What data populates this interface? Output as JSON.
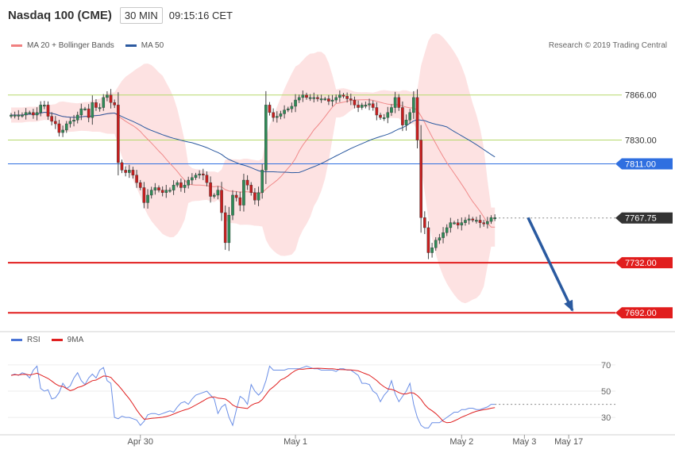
{
  "header": {
    "title": "Nasdaq 100 (CME)",
    "interval": "30 MIN",
    "time": "09:15:16 CET"
  },
  "legend_main": [
    {
      "label": "MA 20 + Bollinger Bands",
      "color": "#f08080"
    },
    {
      "label": "MA 50",
      "color": "#2c5aa0"
    }
  ],
  "legend_rsi": [
    {
      "label": "RSI",
      "color": "#4a74d6"
    },
    {
      "label": "9MA",
      "color": "#e02020"
    }
  ],
  "copyright": "Research © 2019 Trading Central",
  "colors": {
    "up": "#2e8b57",
    "down": "#c81e1e",
    "band_fill": "#fddddd",
    "ma20": "#f08a8a",
    "ma50": "#2c5aa0",
    "resistance": "#b5d96a",
    "pivot": "#2f6fe0",
    "support": "#e11d1d",
    "arrow": "#2a5aa0",
    "rsi": "#6a8ee6",
    "rsi_ma": "#e02020"
  },
  "chart_data": [
    {
      "type": "candlestick",
      "y_range": [
        7682,
        7895
      ],
      "x_labels": [
        {
          "label": "Apr 30",
          "index": 35
        },
        {
          "label": "May 1",
          "index": 77
        },
        {
          "label": "May 2",
          "index": 122
        },
        {
          "label": "May 3",
          "index": 139
        },
        {
          "label": "May 17",
          "index": 151
        }
      ],
      "level_lines": [
        {
          "label": "7866.00",
          "value": 7866,
          "kind": "resistance"
        },
        {
          "label": "7830.00",
          "value": 7830,
          "kind": "resistance"
        },
        {
          "label": "7811.00",
          "value": 7811,
          "kind": "pivot"
        },
        {
          "label": "7767.75",
          "value": 7767.75,
          "kind": "current"
        },
        {
          "label": "7732.00",
          "value": 7732,
          "kind": "support"
        },
        {
          "label": "7692.00",
          "value": 7692,
          "kind": "support"
        }
      ],
      "forecast_arrow": {
        "from": [
          140,
          7768
        ],
        "to": [
          152,
          7694
        ]
      },
      "closes": [
        7850,
        7850,
        7850,
        7850,
        7852,
        7852,
        7850,
        7852,
        7858,
        7858,
        7849,
        7845,
        7843,
        7836,
        7838,
        7843,
        7845,
        7846,
        7850,
        7855,
        7855,
        7848,
        7860,
        7856,
        7856,
        7864,
        7866,
        7860,
        7858,
        7812,
        7806,
        7804,
        7806,
        7802,
        7796,
        7792,
        7780,
        7786,
        7790,
        7792,
        7790,
        7788,
        7790,
        7790,
        7794,
        7796,
        7792,
        7794,
        7798,
        7800,
        7802,
        7803,
        7802,
        7796,
        7785,
        7786,
        7790,
        7772,
        7748,
        7770,
        7786,
        7784,
        7778,
        7798,
        7794,
        7788,
        7782,
        7788,
        7806,
        7858,
        7852,
        7848,
        7849,
        7851,
        7854,
        7855,
        7857,
        7862,
        7864,
        7866,
        7864,
        7864,
        7864,
        7863,
        7863,
        7863,
        7861,
        7862,
        7864,
        7866,
        7865,
        7863,
        7862,
        7858,
        7856,
        7858,
        7858,
        7859,
        7856,
        7850,
        7848,
        7848,
        7852,
        7856,
        7864,
        7856,
        7842,
        7846,
        7852,
        7864,
        7830,
        7768,
        7760,
        7740,
        7744,
        7750,
        7752,
        7756,
        7760,
        7764,
        7764,
        7762,
        7764,
        7766,
        7767,
        7766,
        7766,
        7764,
        7763,
        7765,
        7768,
        7768
      ],
      "rsi": [
        62,
        63,
        62,
        64,
        63,
        60,
        66,
        69,
        52,
        50,
        51,
        44,
        45,
        49,
        56,
        52,
        54,
        60,
        64,
        58,
        55,
        60,
        63,
        60,
        66,
        68,
        58,
        56,
        30,
        29,
        31,
        30,
        30,
        29,
        28,
        24,
        27,
        32,
        33,
        33,
        32,
        33,
        34,
        35,
        34,
        38,
        41,
        42,
        40,
        44,
        47,
        48,
        49,
        50,
        47,
        44,
        33,
        38,
        40,
        30,
        24,
        36,
        46,
        44,
        40,
        55,
        50,
        47,
        50,
        58,
        69,
        66,
        66,
        66,
        66,
        67,
        67,
        67,
        67,
        68,
        69,
        68,
        67,
        67,
        66,
        66,
        66,
        66,
        65,
        67,
        67,
        66,
        66,
        64,
        62,
        56,
        56,
        55,
        50,
        48,
        42,
        47,
        50,
        58,
        48,
        42,
        46,
        50,
        56,
        40,
        30,
        24,
        22,
        22,
        26,
        26,
        26,
        28,
        30,
        32,
        34,
        34,
        36,
        36,
        37,
        37,
        36,
        36,
        37,
        38,
        40,
        40
      ],
      "rsi_ticks": [
        {
          "label": "70",
          "value": 70
        },
        {
          "label": "50",
          "value": 50
        },
        {
          "label": "30",
          "value": 30
        }
      ],
      "rsi_range": [
        18,
        82
      ]
    }
  ]
}
